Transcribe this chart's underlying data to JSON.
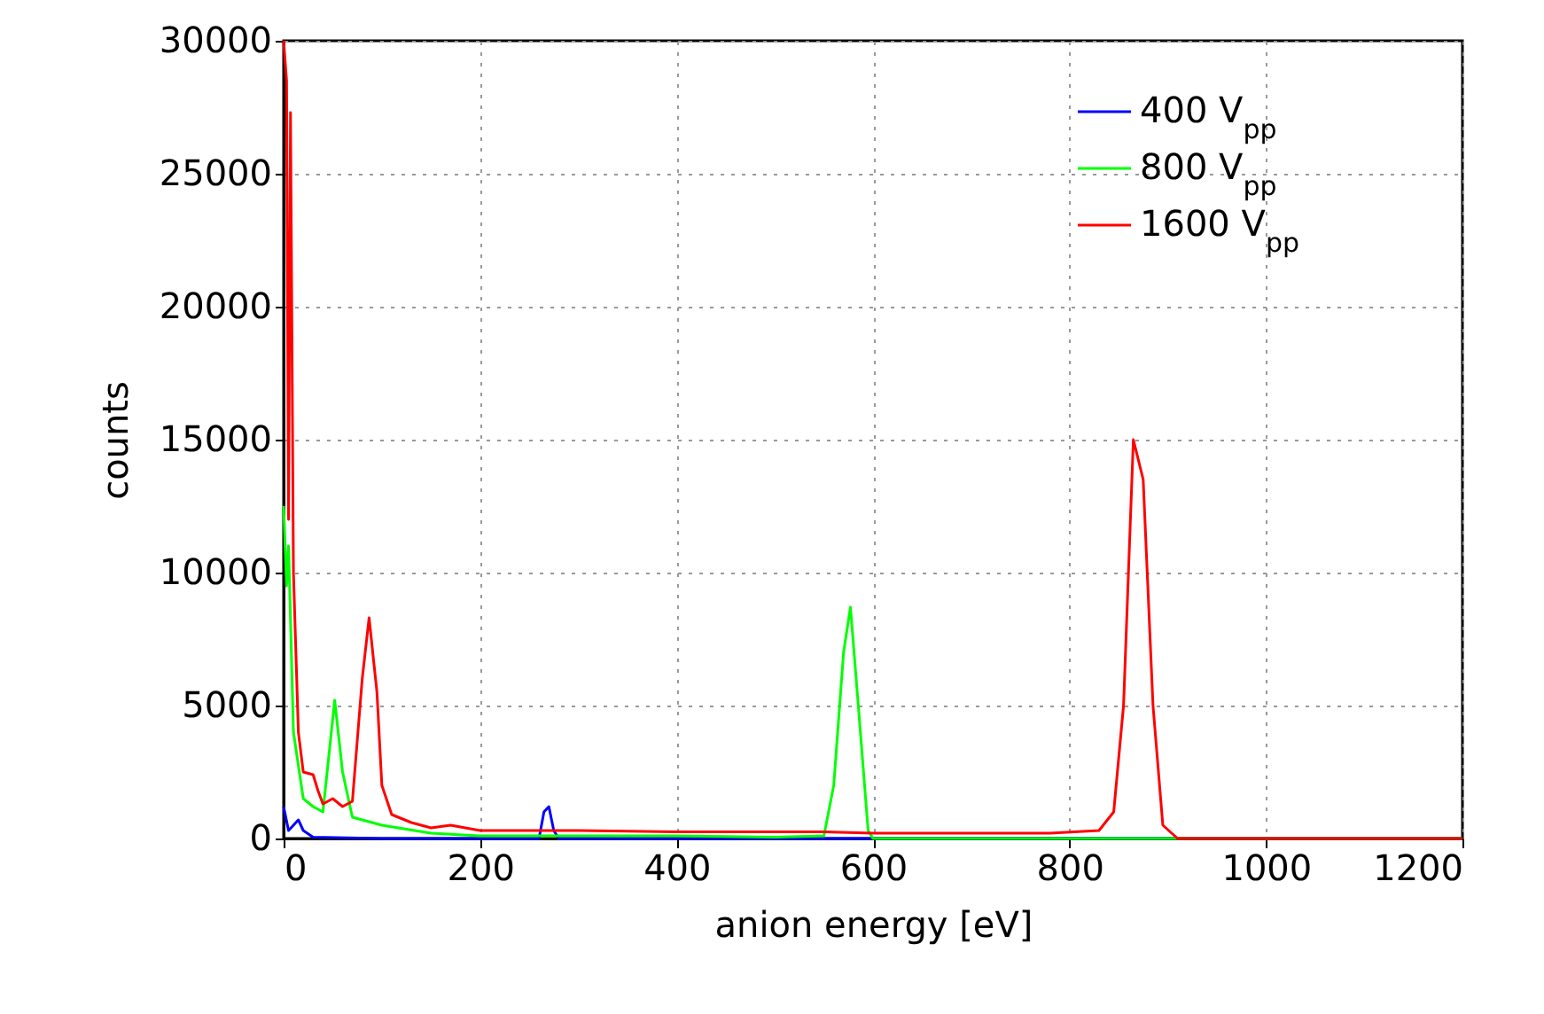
{
  "chart_data": {
    "type": "line",
    "xlabel": "anion energy [eV]",
    "ylabel": "counts",
    "xlim": [
      0,
      1200
    ],
    "xticks": [
      0,
      200,
      400,
      600,
      800,
      1000,
      1200
    ],
    "ylim": [
      0,
      30000
    ],
    "yticks": [
      0,
      5000,
      10000,
      15000,
      20000,
      25000,
      30000
    ],
    "grid": true,
    "legend": "top right",
    "line_style": "solid",
    "series": [
      {
        "name": "400 V$_{pp}$",
        "color": "#0000ff",
        "x": [
          0,
          5,
          10,
          15,
          20,
          30,
          100,
          260,
          265,
          270,
          275,
          280,
          600,
          1200
        ],
        "values": [
          1200,
          300,
          500,
          700,
          300,
          50,
          0,
          0,
          1000,
          1200,
          300,
          0,
          0,
          0
        ]
      },
      {
        "name": "800 V$_{pp}$",
        "color": "#00ff00",
        "x": [
          0,
          3,
          5,
          10,
          20,
          30,
          40,
          52,
          60,
          70,
          100,
          150,
          200,
          300,
          400,
          500,
          550,
          560,
          570,
          577,
          585,
          595,
          600,
          1200
        ],
        "values": [
          12500,
          9500,
          11000,
          4000,
          1500,
          1200,
          1000,
          5200,
          2500,
          800,
          500,
          200,
          100,
          100,
          100,
          50,
          100,
          2000,
          7000,
          8700,
          5000,
          300,
          0,
          0
        ]
      },
      {
        "name": "1600 V$_{pp}$",
        "color": "#ff0000",
        "x": [
          0,
          3,
          5,
          7,
          10,
          15,
          20,
          30,
          35,
          40,
          50,
          60,
          70,
          80,
          87,
          95,
          100,
          110,
          130,
          150,
          170,
          200,
          250,
          300,
          400,
          500,
          550,
          600,
          700,
          780,
          830,
          845,
          855,
          865,
          875,
          885,
          895,
          910,
          1200
        ],
        "values": [
          30000,
          28500,
          12000,
          27300,
          10000,
          4000,
          2500,
          2400,
          1800,
          1300,
          1500,
          1200,
          1400,
          6000,
          8300,
          5500,
          2000,
          900,
          600,
          400,
          500,
          300,
          300,
          300,
          250,
          250,
          250,
          200,
          200,
          200,
          300,
          1000,
          5000,
          15000,
          13500,
          5000,
          500,
          0,
          0
        ]
      }
    ]
  }
}
